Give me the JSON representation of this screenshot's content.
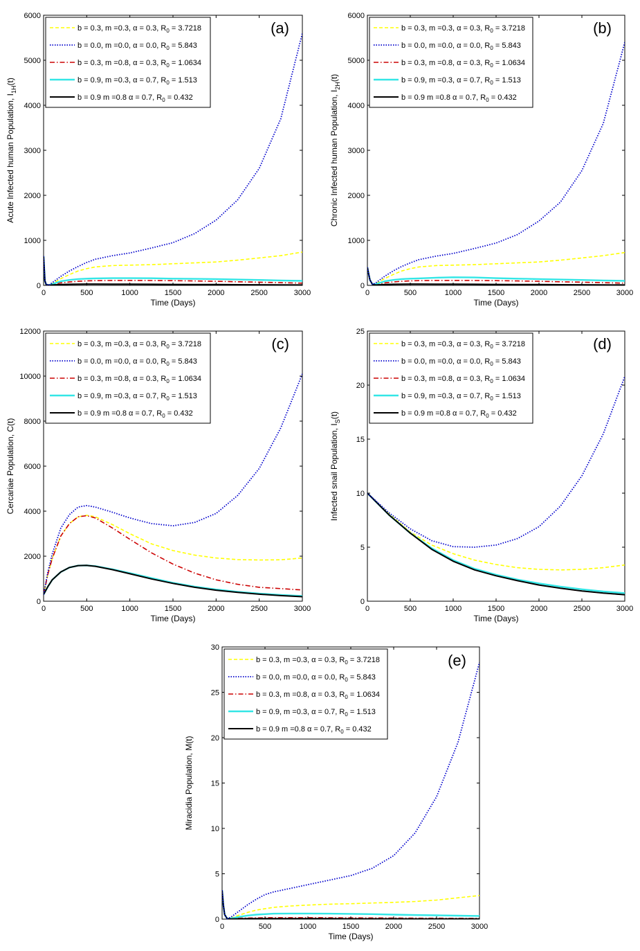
{
  "chart_data": [
    {
      "type": "line",
      "panel_label": "(a)",
      "xlabel": "Time (Days)",
      "ylabel": "Acute Infected human Population, I",
      "ylabel_sub": "1H",
      "ylabel_suffix": "(t)",
      "xlim": [
        0,
        3000
      ],
      "ylim": [
        0,
        6000
      ],
      "xticks": [
        0,
        500,
        1000,
        1500,
        2000,
        2500,
        3000
      ],
      "yticks": [
        0,
        1000,
        2000,
        3000,
        4000,
        5000,
        6000
      ],
      "x": [
        0,
        15,
        30,
        60,
        100,
        200,
        300,
        400,
        500,
        600,
        800,
        1000,
        1250,
        1500,
        1750,
        2000,
        2250,
        2500,
        2750,
        3000
      ],
      "series": [
        {
          "key": "s1",
          "values": [
            650,
            100,
            20,
            5,
            40,
            150,
            240,
            320,
            370,
            410,
            440,
            450,
            460,
            480,
            500,
            520,
            560,
            610,
            660,
            740
          ]
        },
        {
          "key": "s2",
          "values": [
            650,
            100,
            20,
            5,
            60,
            200,
            320,
            420,
            510,
            580,
            660,
            720,
            830,
            950,
            1150,
            1450,
            1900,
            2600,
            3700,
            5600
          ]
        },
        {
          "key": "s3",
          "values": [
            650,
            100,
            20,
            5,
            20,
            55,
            75,
            90,
            100,
            105,
            110,
            110,
            108,
            104,
            98,
            90,
            80,
            70,
            60,
            50
          ]
        },
        {
          "key": "s4",
          "values": [
            650,
            100,
            20,
            5,
            30,
            90,
            120,
            140,
            150,
            155,
            160,
            160,
            158,
            150,
            145,
            140,
            130,
            120,
            110,
            100
          ]
        },
        {
          "key": "s5",
          "values": [
            650,
            100,
            20,
            5,
            10,
            20,
            25,
            28,
            30,
            30,
            28,
            26,
            24,
            22,
            20,
            18,
            16,
            14,
            12,
            10
          ]
        }
      ]
    },
    {
      "type": "line",
      "panel_label": "(b)",
      "xlabel": "Time (Days)",
      "ylabel": "Chronic Infected human Population, I",
      "ylabel_sub": "2H",
      "ylabel_suffix": "(t)",
      "xlim": [
        0,
        3000
      ],
      "ylim": [
        0,
        6000
      ],
      "xticks": [
        0,
        500,
        1000,
        1500,
        2000,
        2500,
        3000
      ],
      "yticks": [
        0,
        1000,
        2000,
        3000,
        4000,
        5000,
        6000
      ],
      "x": [
        0,
        15,
        30,
        60,
        100,
        200,
        300,
        400,
        500,
        600,
        800,
        1000,
        1250,
        1500,
        1750,
        2000,
        2250,
        2500,
        2750,
        3000
      ],
      "series": [
        {
          "key": "s1",
          "values": [
            400,
            250,
            120,
            20,
            40,
            150,
            240,
            320,
            370,
            410,
            440,
            450,
            460,
            480,
            500,
            520,
            560,
            610,
            660,
            730
          ]
        },
        {
          "key": "s2",
          "values": [
            400,
            250,
            120,
            20,
            60,
            200,
            320,
            420,
            500,
            570,
            650,
            710,
            820,
            940,
            1130,
            1430,
            1850,
            2550,
            3600,
            5400
          ]
        },
        {
          "key": "s3",
          "values": [
            400,
            250,
            120,
            20,
            20,
            55,
            75,
            90,
            100,
            105,
            110,
            110,
            108,
            104,
            98,
            90,
            80,
            70,
            60,
            50
          ]
        },
        {
          "key": "s4",
          "values": [
            400,
            250,
            120,
            20,
            30,
            90,
            120,
            140,
            150,
            155,
            170,
            180,
            175,
            160,
            150,
            140,
            130,
            120,
            110,
            100
          ]
        },
        {
          "key": "s5",
          "values": [
            400,
            250,
            120,
            20,
            10,
            20,
            25,
            28,
            30,
            30,
            28,
            26,
            24,
            22,
            20,
            18,
            16,
            14,
            12,
            10
          ]
        }
      ]
    },
    {
      "type": "line",
      "panel_label": "(c)",
      "xlabel": "Time (Days)",
      "ylabel": "Cercariae Population, C(t)",
      "ylabel_sub": "",
      "ylabel_suffix": "",
      "xlim": [
        0,
        3000
      ],
      "ylim": [
        0,
        12000
      ],
      "xticks": [
        0,
        500,
        1000,
        1500,
        2000,
        2500,
        3000
      ],
      "yticks": [
        0,
        2000,
        4000,
        6000,
        8000,
        10000,
        12000
      ],
      "x": [
        0,
        50,
        100,
        200,
        300,
        400,
        500,
        600,
        800,
        1000,
        1250,
        1500,
        1750,
        2000,
        2250,
        2500,
        2750,
        3000
      ],
      "series": [
        {
          "key": "s1",
          "values": [
            300,
            1200,
            1900,
            2900,
            3450,
            3750,
            3820,
            3750,
            3400,
            3000,
            2550,
            2250,
            2050,
            1920,
            1850,
            1830,
            1840,
            1920
          ]
        },
        {
          "key": "s2",
          "values": [
            300,
            1300,
            2100,
            3250,
            3850,
            4180,
            4250,
            4180,
            3950,
            3700,
            3450,
            3350,
            3500,
            3900,
            4700,
            5900,
            7700,
            10100
          ]
        },
        {
          "key": "s3",
          "values": [
            300,
            1200,
            1900,
            2900,
            3450,
            3750,
            3800,
            3700,
            3250,
            2750,
            2150,
            1650,
            1250,
            950,
            750,
            620,
            560,
            500
          ]
        },
        {
          "key": "s4",
          "values": [
            300,
            650,
            950,
            1300,
            1500,
            1580,
            1590,
            1560,
            1420,
            1250,
            1030,
            820,
            650,
            520,
            420,
            340,
            280,
            230
          ]
        },
        {
          "key": "s5",
          "values": [
            300,
            650,
            950,
            1300,
            1500,
            1580,
            1590,
            1550,
            1400,
            1220,
            990,
            790,
            620,
            490,
            390,
            310,
            250,
            200
          ]
        }
      ]
    },
    {
      "type": "line",
      "panel_label": "(d)",
      "xlabel": "Time (Days)",
      "ylabel": "Infected snail Population, I",
      "ylabel_sub": "S",
      "ylabel_suffix": "(t)",
      "xlim": [
        0,
        3000
      ],
      "ylim": [
        0,
        25
      ],
      "xticks": [
        0,
        500,
        1000,
        1500,
        2000,
        2500,
        3000
      ],
      "yticks": [
        0,
        5,
        10,
        15,
        20,
        25
      ],
      "x": [
        0,
        250,
        500,
        750,
        1000,
        1250,
        1500,
        1750,
        2000,
        2250,
        2500,
        2750,
        3000
      ],
      "series": [
        {
          "key": "s1",
          "values": [
            10,
            8.1,
            6.4,
            5.2,
            4.4,
            3.8,
            3.4,
            3.1,
            2.95,
            2.9,
            2.95,
            3.1,
            3.35
          ]
        },
        {
          "key": "s2",
          "values": [
            10,
            8.2,
            6.7,
            5.6,
            5.05,
            5.0,
            5.2,
            5.8,
            6.9,
            8.8,
            11.6,
            15.5,
            20.8
          ]
        },
        {
          "key": "s3",
          "values": [
            10,
            8.0,
            6.3,
            4.9,
            3.8,
            3.0,
            2.4,
            1.9,
            1.5,
            1.2,
            0.95,
            0.75,
            0.6
          ]
        },
        {
          "key": "s4",
          "values": [
            10,
            8.0,
            6.3,
            4.9,
            3.8,
            3.0,
            2.45,
            2.0,
            1.65,
            1.35,
            1.1,
            0.9,
            0.75
          ]
        },
        {
          "key": "s5",
          "values": [
            10,
            8.0,
            6.3,
            4.8,
            3.7,
            2.9,
            2.35,
            1.9,
            1.5,
            1.2,
            0.95,
            0.75,
            0.6
          ]
        }
      ]
    },
    {
      "type": "line",
      "panel_label": "(e)",
      "xlabel": "Time (Days)",
      "ylabel": "Miracidia Population, M(t)",
      "ylabel_sub": "",
      "ylabel_suffix": "",
      "xlim": [
        0,
        3000
      ],
      "ylim": [
        0,
        30
      ],
      "xticks": [
        0,
        500,
        1000,
        1500,
        2000,
        2500,
        3000
      ],
      "yticks": [
        0,
        5,
        10,
        15,
        20,
        25,
        30
      ],
      "x": [
        0,
        15,
        30,
        60,
        100,
        200,
        300,
        400,
        500,
        600,
        800,
        1000,
        1250,
        1500,
        1750,
        2000,
        2250,
        2500,
        2750,
        3000
      ],
      "series": [
        {
          "key": "s1",
          "values": [
            3.2,
            1.5,
            0.5,
            0.05,
            0.1,
            0.45,
            0.75,
            1.0,
            1.15,
            1.3,
            1.45,
            1.55,
            1.65,
            1.7,
            1.78,
            1.85,
            1.95,
            2.1,
            2.35,
            2.6
          ]
        },
        {
          "key": "s2",
          "values": [
            3.2,
            1.5,
            0.5,
            0.05,
            0.2,
            0.9,
            1.6,
            2.2,
            2.7,
            3.0,
            3.4,
            3.8,
            4.3,
            4.8,
            5.6,
            7.0,
            9.5,
            13.5,
            19.5,
            28.3
          ]
        },
        {
          "key": "s3",
          "values": [
            3.2,
            1.5,
            0.5,
            0.05,
            0.05,
            0.1,
            0.12,
            0.14,
            0.15,
            0.16,
            0.16,
            0.16,
            0.15,
            0.14,
            0.13,
            0.12,
            0.11,
            0.1,
            0.09,
            0.08
          ]
        },
        {
          "key": "s4",
          "values": [
            3.2,
            1.5,
            0.5,
            0.05,
            0.08,
            0.25,
            0.4,
            0.5,
            0.55,
            0.6,
            0.62,
            0.62,
            0.6,
            0.58,
            0.55,
            0.5,
            0.45,
            0.42,
            0.38,
            0.35
          ]
        },
        {
          "key": "s5",
          "values": [
            3.2,
            1.5,
            0.5,
            0.05,
            0.02,
            0.04,
            0.05,
            0.05,
            0.05,
            0.05,
            0.05,
            0.05,
            0.05,
            0.04,
            0.04,
            0.04,
            0.03,
            0.03,
            0.03,
            0.03
          ]
        }
      ]
    }
  ],
  "legend": [
    {
      "key": "s1",
      "text": "b = 0.3, m =0.3, α = 0.3, R",
      "sub": "0",
      "tail": " = 3.7218",
      "color": "#ffff00",
      "style": "dashed"
    },
    {
      "key": "s2",
      "text": "b = 0.0, m =0.0, α = 0.0, R",
      "sub": "0",
      "tail": " = 5.843",
      "color": "#0000cc",
      "style": "dotted"
    },
    {
      "key": "s3",
      "text": "b = 0.3, m =0.8, α = 0.3, R",
      "sub": "0",
      "tail": " = 1.0634",
      "color": "#cc0000",
      "style": "dashdot"
    },
    {
      "key": "s4",
      "text": "b = 0.9, m =0.3, α = 0.7, R",
      "sub": "0",
      "tail": " = 1.513",
      "color": "#33e6e6",
      "style": "solid"
    },
    {
      "key": "s5",
      "text": "b = 0.9 m =0.8 α = 0.7, R",
      "sub": "0",
      "tail": " = 0.432",
      "color": "#000000",
      "style": "solid"
    }
  ]
}
